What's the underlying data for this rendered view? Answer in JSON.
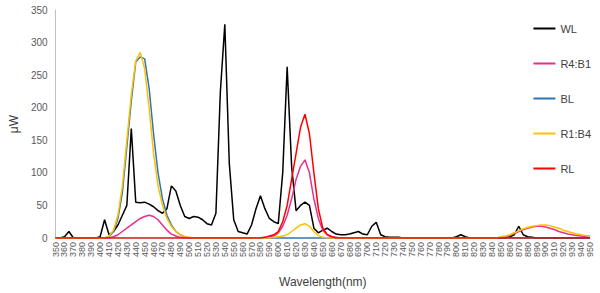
{
  "chart_data": {
    "type": "line",
    "x_label": "Wavelength(nm)",
    "y_label": "μW",
    "x": [
      350,
      355,
      360,
      365,
      370,
      375,
      380,
      385,
      390,
      395,
      400,
      405,
      410,
      415,
      420,
      425,
      430,
      435,
      440,
      445,
      450,
      455,
      460,
      465,
      470,
      475,
      480,
      485,
      490,
      495,
      500,
      505,
      510,
      515,
      520,
      525,
      530,
      535,
      540,
      545,
      550,
      555,
      560,
      565,
      570,
      575,
      580,
      585,
      590,
      595,
      600,
      605,
      610,
      615,
      620,
      625,
      630,
      635,
      640,
      645,
      650,
      655,
      660,
      665,
      670,
      675,
      680,
      685,
      690,
      695,
      700,
      705,
      710,
      715,
      720,
      725,
      730,
      735,
      740,
      745,
      750,
      755,
      760,
      765,
      770,
      775,
      780,
      785,
      790,
      795,
      800,
      805,
      810,
      815,
      820,
      825,
      830,
      835,
      840,
      845,
      850,
      855,
      860,
      865,
      870,
      875,
      880,
      885,
      890,
      895,
      900,
      905,
      910,
      915,
      920,
      925,
      930,
      935,
      940,
      945,
      950
    ],
    "series": [
      {
        "name": "WL",
        "color": "#000000",
        "values": [
          0,
          0,
          2,
          10,
          0,
          0,
          0,
          0,
          0,
          0,
          2,
          28,
          5,
          10,
          20,
          35,
          50,
          168,
          55,
          54,
          55,
          52,
          48,
          42,
          38,
          45,
          80,
          72,
          50,
          33,
          30,
          33,
          32,
          28,
          22,
          20,
          38,
          225,
          328,
          115,
          28,
          10,
          8,
          6,
          20,
          45,
          65,
          45,
          30,
          25,
          22,
          100,
          263,
          110,
          42,
          50,
          55,
          50,
          15,
          8,
          12,
          15,
          10,
          6,
          5,
          5,
          6,
          8,
          10,
          6,
          5,
          18,
          24,
          5,
          2,
          1,
          1,
          1,
          0,
          0,
          0,
          0,
          0,
          0,
          0,
          0,
          0,
          0,
          0,
          0,
          2,
          5,
          2,
          0,
          0,
          0,
          0,
          0,
          0,
          0,
          0,
          0,
          2,
          5,
          18,
          5,
          2,
          1,
          0,
          0,
          0,
          0,
          0,
          0,
          0,
          0,
          0,
          0,
          0,
          0,
          0
        ]
      },
      {
        "name": "R4:B1",
        "color": "#e6308a",
        "values": [
          0,
          0,
          0,
          0,
          0,
          0,
          0,
          0,
          0,
          0,
          0,
          0,
          0,
          2,
          5,
          10,
          15,
          20,
          25,
          30,
          33,
          35,
          33,
          28,
          20,
          12,
          6,
          3,
          1,
          0,
          0,
          0,
          0,
          0,
          0,
          0,
          0,
          0,
          0,
          0,
          0,
          0,
          0,
          0,
          0,
          0,
          0,
          1,
          2,
          3,
          8,
          18,
          35,
          60,
          90,
          110,
          120,
          100,
          60,
          30,
          12,
          5,
          2,
          1,
          0,
          0,
          0,
          0,
          0,
          0,
          0,
          0,
          0,
          0,
          0,
          0,
          0,
          0,
          0,
          0,
          0,
          0,
          0,
          0,
          0,
          0,
          0,
          0,
          0,
          0,
          0,
          0,
          0,
          0,
          0,
          0,
          0,
          0,
          0,
          0,
          1,
          2,
          4,
          7,
          10,
          13,
          15,
          17,
          18,
          18,
          17,
          15,
          13,
          10,
          8,
          6,
          5,
          4,
          3,
          2,
          1
        ]
      },
      {
        "name": "BL",
        "color": "#2e75b6",
        "values": [
          0,
          0,
          0,
          0,
          0,
          0,
          0,
          0,
          0,
          0,
          0,
          0,
          2,
          10,
          30,
          70,
          140,
          210,
          270,
          278,
          275,
          230,
          160,
          100,
          60,
          35,
          20,
          10,
          5,
          2,
          0,
          0,
          0,
          0,
          0,
          0,
          0,
          0,
          0,
          0,
          0,
          0,
          0,
          0,
          0,
          0,
          0,
          0,
          0,
          0,
          0,
          0,
          0,
          0,
          0,
          0,
          0,
          0,
          0,
          0,
          0,
          0,
          0,
          0,
          0,
          0,
          0,
          0,
          0,
          0,
          0,
          0,
          0,
          0,
          0,
          0,
          0,
          0,
          0,
          0,
          0,
          0,
          0,
          0,
          0,
          0,
          0,
          0,
          0,
          0,
          0,
          0,
          0,
          0,
          0,
          0,
          0,
          0,
          0,
          0,
          0,
          0,
          0,
          0,
          0,
          0,
          0,
          0,
          0,
          0,
          0,
          0,
          0,
          0,
          0,
          0,
          0,
          0,
          0,
          0,
          0
        ]
      },
      {
        "name": "R1:B4",
        "color": "#ffc000",
        "values": [
          0,
          0,
          0,
          0,
          0,
          0,
          0,
          0,
          0,
          0,
          0,
          0,
          3,
          12,
          35,
          80,
          150,
          220,
          272,
          285,
          260,
          200,
          130,
          80,
          50,
          30,
          18,
          10,
          5,
          2,
          1,
          0,
          0,
          0,
          0,
          0,
          0,
          0,
          0,
          0,
          0,
          0,
          0,
          0,
          0,
          0,
          0,
          0,
          0,
          1,
          2,
          3,
          5,
          10,
          15,
          20,
          22,
          18,
          10,
          4,
          1,
          0,
          0,
          0,
          0,
          0,
          0,
          0,
          0,
          0,
          0,
          0,
          0,
          0,
          0,
          0,
          0,
          0,
          0,
          0,
          0,
          0,
          0,
          0,
          0,
          0,
          0,
          0,
          0,
          0,
          0,
          0,
          0,
          0,
          0,
          0,
          0,
          0,
          0,
          0,
          2,
          3,
          5,
          8,
          11,
          14,
          16,
          18,
          19,
          20,
          20,
          19,
          17,
          15,
          12,
          10,
          8,
          6,
          5,
          4,
          3
        ]
      },
      {
        "name": "RL",
        "color": "#ff0000",
        "values": [
          0,
          0,
          0,
          0,
          0,
          0,
          0,
          0,
          0,
          0,
          0,
          0,
          0,
          0,
          0,
          0,
          0,
          0,
          0,
          0,
          0,
          0,
          0,
          0,
          0,
          0,
          0,
          0,
          0,
          0,
          0,
          0,
          0,
          0,
          0,
          0,
          0,
          0,
          0,
          0,
          0,
          0,
          0,
          0,
          0,
          0,
          0,
          1,
          3,
          5,
          10,
          25,
          50,
          90,
          130,
          170,
          190,
          160,
          100,
          45,
          15,
          5,
          2,
          0,
          0,
          0,
          0,
          0,
          0,
          0,
          0,
          0,
          0,
          0,
          0,
          0,
          0,
          0,
          0,
          0,
          0,
          0,
          0,
          0,
          0,
          0,
          0,
          0,
          0,
          0,
          0,
          0,
          0,
          0,
          0,
          0,
          0,
          0,
          0,
          0,
          0,
          0,
          0,
          0,
          0,
          0,
          0,
          0,
          0,
          0,
          0,
          0,
          0,
          0,
          0,
          0,
          0,
          0,
          0,
          0,
          0
        ]
      }
    ],
    "xlim": [
      350,
      950
    ],
    "xticks": [
      350,
      360,
      370,
      380,
      390,
      400,
      410,
      420,
      430,
      440,
      450,
      460,
      470,
      480,
      490,
      500,
      510,
      520,
      530,
      540,
      550,
      560,
      570,
      580,
      590,
      600,
      610,
      620,
      630,
      640,
      650,
      660,
      670,
      680,
      690,
      700,
      710,
      720,
      730,
      740,
      750,
      760,
      770,
      780,
      790,
      800,
      810,
      820,
      830,
      840,
      850,
      860,
      870,
      880,
      890,
      900,
      910,
      920,
      930,
      940,
      950
    ],
    "ylim": [
      0,
      350
    ],
    "yticks": [
      0,
      50,
      100,
      150,
      200,
      250,
      300,
      350
    ],
    "grid": false,
    "legend": "right"
  }
}
